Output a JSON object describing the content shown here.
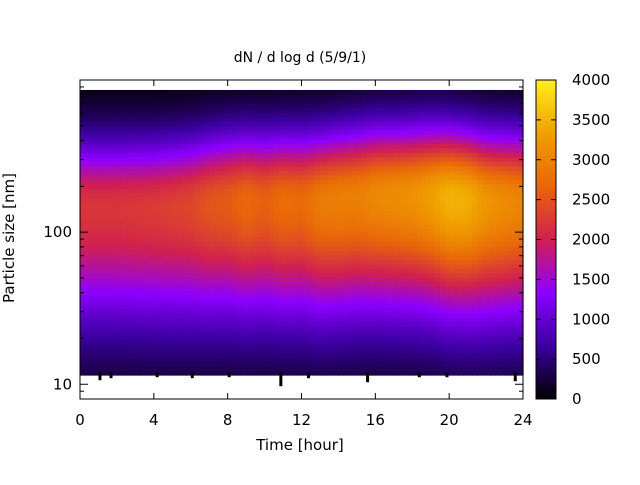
{
  "chart_data": {
    "type": "heatmap",
    "title": "dN / d log d (5/9/1)",
    "xlabel": "Time [hour]",
    "ylabel": "Particle size [nm]",
    "x_ticks": [
      "0",
      "4",
      "8",
      "12",
      "16",
      "20",
      "24"
    ],
    "x_tick_values": [
      0,
      4,
      8,
      12,
      16,
      20,
      24
    ],
    "xlim": [
      0,
      24
    ],
    "y_scale": "log",
    "y_ticks": [
      "10",
      "100"
    ],
    "y_tick_values": [
      10,
      100
    ],
    "ylim": [
      8,
      1000
    ],
    "data_y_range": [
      11.5,
      860
    ],
    "colorbar": {
      "ticks": [
        "0",
        "500",
        "1000",
        "1500",
        "2000",
        "2500",
        "3000",
        "3500",
        "4000"
      ],
      "tick_values": [
        0,
        500,
        1000,
        1500,
        2000,
        2500,
        3000,
        3500,
        4000
      ],
      "range": [
        0,
        4000
      ],
      "colormap": [
        "#000000",
        "#3b00a0",
        "#8d00ff",
        "#d02050",
        "#e8660a",
        "#f0a000",
        "#ffee20"
      ]
    },
    "times": [
      0,
      2,
      4,
      6,
      7,
      8,
      9,
      10,
      11,
      12,
      13,
      14,
      15,
      16,
      17,
      18,
      19,
      20,
      21,
      22,
      24
    ],
    "mode_diameter_nm": [
      145,
      145,
      145,
      150,
      155,
      160,
      160,
      160,
      160,
      160,
      160,
      165,
      170,
      175,
      175,
      175,
      175,
      170,
      165,
      160,
      160
    ],
    "peak_concentration": [
      2200,
      2200,
      2250,
      2350,
      2500,
      2550,
      2700,
      2600,
      2750,
      2700,
      2900,
      2950,
      2950,
      3050,
      3100,
      3150,
      3300,
      3500,
      3450,
      3200,
      3000
    ],
    "lower_cutoff_nm": [
      12,
      12,
      12,
      12,
      12,
      12,
      12,
      12,
      12,
      12,
      12,
      12,
      12,
      12,
      12,
      12,
      12,
      12,
      12,
      12,
      12
    ]
  }
}
